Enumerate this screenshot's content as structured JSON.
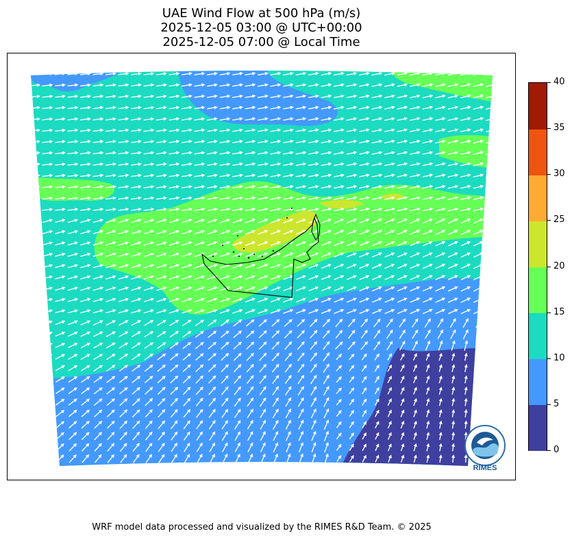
{
  "title": {
    "line1": "UAE Wind Flow at 500 hPa (m/s)",
    "line2": "2025-12-05 03:00 @ UTC+00:00",
    "line3": "2025-12-05 07:00 @ Local Time"
  },
  "colorbar": {
    "ticks": [
      "0",
      "5",
      "10",
      "15",
      "20",
      "25",
      "30",
      "35",
      "40"
    ],
    "colors": [
      "#3f3f9f",
      "#4499ff",
      "#1bdbc1",
      "#66ff55",
      "#cce62d",
      "#ffaa33",
      "#ee5511",
      "#a01a05"
    ]
  },
  "logo": {
    "text": "RIMES"
  },
  "footer": {
    "text": "WRF model data processed and visualized by the RIMES R&D Team. © 2025"
  },
  "map": {
    "arrow_color": "#ffffff",
    "border_color": "#000000"
  }
}
